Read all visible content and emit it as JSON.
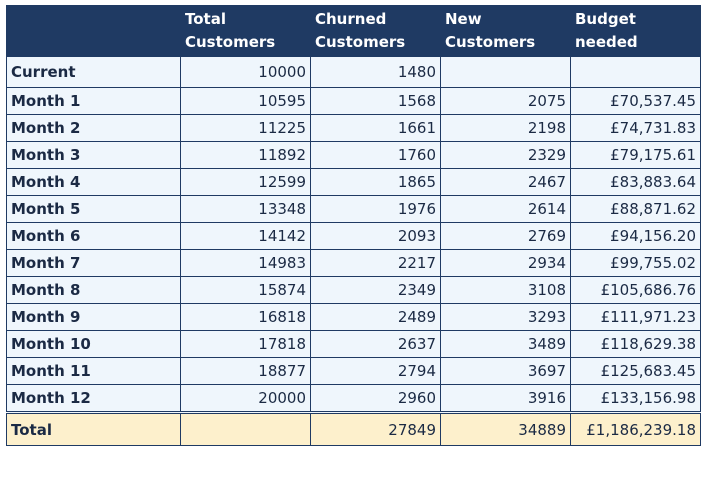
{
  "table": {
    "columns": [
      [
        "Total",
        "Customers"
      ],
      [
        "Churned",
        "Customers"
      ],
      [
        "New",
        "Customers"
      ],
      [
        "Budget",
        "needed"
      ]
    ],
    "rows": [
      {
        "label": "Current",
        "total": "10000",
        "churned": "1480"
      },
      {
        "label": "Month 1",
        "total": "10595",
        "churned": "1568",
        "new": "2075",
        "budget": "£70,537.45"
      },
      {
        "label": "Month 2",
        "total": "11225",
        "churned": "1661",
        "new": "2198",
        "budget": "£74,731.83"
      },
      {
        "label": "Month 3",
        "total": "11892",
        "churned": "1760",
        "new": "2329",
        "budget": "£79,175.61"
      },
      {
        "label": "Month 4",
        "total": "12599",
        "churned": "1865",
        "new": "2467",
        "budget": "£83,883.64"
      },
      {
        "label": "Month 5",
        "total": "13348",
        "churned": "1976",
        "new": "2614",
        "budget": "£88,871.62"
      },
      {
        "label": "Month 6",
        "total": "14142",
        "churned": "2093",
        "new": "2769",
        "budget": "£94,156.20"
      },
      {
        "label": "Month 7",
        "total": "14983",
        "churned": "2217",
        "new": "2934",
        "budget": "£99,755.02"
      },
      {
        "label": "Month 8",
        "total": "15874",
        "churned": "2349",
        "new": "3108",
        "budget": "£105,686.76"
      },
      {
        "label": "Month 9",
        "total": "16818",
        "churned": "2489",
        "new": "3293",
        "budget": "£111,971.23"
      },
      {
        "label": "Month 10",
        "total": "17818",
        "churned": "2637",
        "new": "3489",
        "budget": "£118,629.38"
      },
      {
        "label": "Month 11",
        "total": "18877",
        "churned": "2794",
        "new": "3697",
        "budget": "£125,683.45"
      },
      {
        "label": "Month 12",
        "total": "20000",
        "churned": "2960",
        "new": "3916",
        "budget": "£133,156.98"
      }
    ],
    "total_row": {
      "label": "Total",
      "churned": "27849",
      "new": "34889",
      "budget": "£1,186,239.18"
    }
  }
}
